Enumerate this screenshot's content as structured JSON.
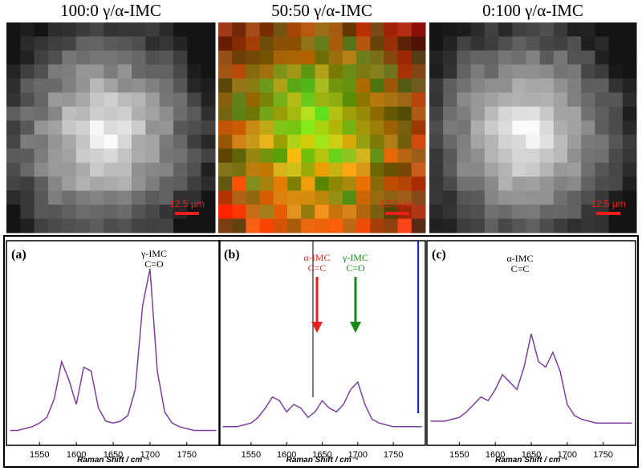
{
  "images": [
    {
      "title": "100:0 γ/α-IMC",
      "scale_bar": "12.5 μm"
    },
    {
      "title": "50:50 γ/α-IMC",
      "scale_bar": "12.5 μm"
    },
    {
      "title": "0:100 γ/α-IMC",
      "scale_bar": "12.5 μm"
    }
  ],
  "chart_data": [
    {
      "type": "line",
      "panel_label": "(a)",
      "x_label": "Raman Shift / cm⁻¹",
      "annotations": [
        {
          "lines": [
            "γ-IMC",
            "C=O"
          ],
          "color": "#000000"
        }
      ],
      "xlim": [
        1505,
        1795
      ],
      "xticks": [
        1550,
        1600,
        1650,
        1700,
        1750
      ],
      "ylim": [
        0,
        1.1
      ],
      "color": "#7b3fa0",
      "x": [
        1510,
        1520,
        1530,
        1540,
        1550,
        1560,
        1570,
        1580,
        1590,
        1600,
        1610,
        1620,
        1630,
        1640,
        1650,
        1660,
        1670,
        1680,
        1690,
        1700,
        1710,
        1720,
        1730,
        1740,
        1750,
        1760,
        1770,
        1780,
        1790
      ],
      "values": [
        0.08,
        0.08,
        0.09,
        0.1,
        0.12,
        0.15,
        0.25,
        0.45,
        0.35,
        0.22,
        0.42,
        0.4,
        0.2,
        0.13,
        0.12,
        0.13,
        0.16,
        0.3,
        0.75,
        0.95,
        0.4,
        0.18,
        0.12,
        0.1,
        0.09,
        0.08,
        0.08,
        0.08,
        0.08
      ]
    },
    {
      "type": "line",
      "panel_label": "(b)",
      "x_label": "Raman Shift / cm⁻¹",
      "annotations": [
        {
          "lines": [
            "α-IMC",
            "C=C"
          ],
          "color": "#e8201c"
        },
        {
          "lines": [
            "γ-IMC",
            "C=O"
          ],
          "color": "#178a17"
        }
      ],
      "xlim": [
        1505,
        1795
      ],
      "xticks": [
        1550,
        1600,
        1650,
        1700,
        1750
      ],
      "ylim": [
        0,
        1.1
      ],
      "color": "#7b3fa0",
      "x": [
        1510,
        1520,
        1530,
        1540,
        1550,
        1560,
        1570,
        1580,
        1590,
        1600,
        1610,
        1620,
        1630,
        1640,
        1650,
        1660,
        1670,
        1680,
        1690,
        1700,
        1710,
        1720,
        1730,
        1740,
        1750,
        1760,
        1770,
        1780,
        1790
      ],
      "values": [
        0.1,
        0.1,
        0.1,
        0.11,
        0.12,
        0.15,
        0.2,
        0.26,
        0.24,
        0.18,
        0.22,
        0.2,
        0.15,
        0.18,
        0.24,
        0.2,
        0.18,
        0.22,
        0.3,
        0.34,
        0.22,
        0.14,
        0.12,
        0.11,
        0.1,
        0.1,
        0.1,
        0.1,
        0.1
      ]
    },
    {
      "type": "line",
      "panel_label": "(c)",
      "x_label": "Raman Shift / cm⁻¹",
      "annotations": [
        {
          "lines": [
            "α-IMC",
            "C=C"
          ],
          "color": "#000000"
        }
      ],
      "xlim": [
        1505,
        1795
      ],
      "xticks": [
        1550,
        1600,
        1650,
        1700,
        1750
      ],
      "ylim": [
        0,
        1.1
      ],
      "color": "#7b3fa0",
      "x": [
        1510,
        1520,
        1530,
        1540,
        1550,
        1560,
        1570,
        1580,
        1590,
        1600,
        1610,
        1620,
        1630,
        1640,
        1650,
        1660,
        1670,
        1680,
        1690,
        1700,
        1710,
        1720,
        1730,
        1740,
        1750,
        1760,
        1770,
        1780,
        1790
      ],
      "values": [
        0.13,
        0.13,
        0.13,
        0.14,
        0.15,
        0.18,
        0.22,
        0.26,
        0.24,
        0.3,
        0.38,
        0.34,
        0.3,
        0.42,
        0.6,
        0.45,
        0.42,
        0.5,
        0.4,
        0.22,
        0.16,
        0.14,
        0.13,
        0.12,
        0.12,
        0.12,
        0.12,
        0.12,
        0.12
      ]
    }
  ]
}
